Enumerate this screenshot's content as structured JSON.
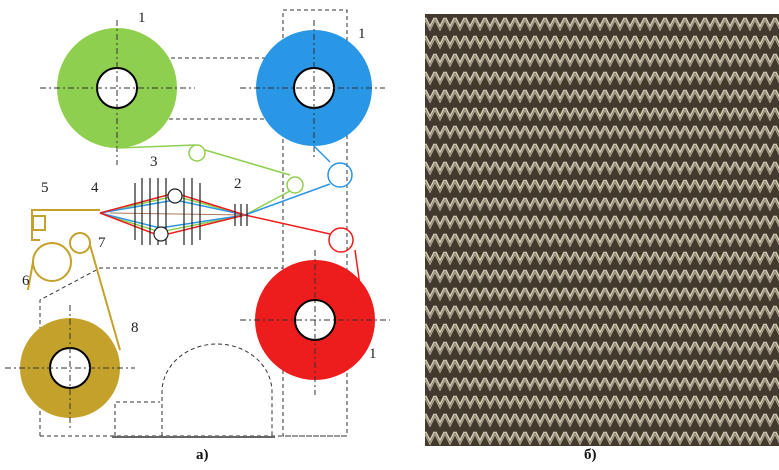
{
  "diagram": {
    "labels": {
      "bobbin_green": "1",
      "bobbin_blue": "1",
      "bobbin_red": "1",
      "heddles": "3",
      "reed": "2",
      "fell": "4",
      "breast_beam": "5",
      "take_up_roller": "6",
      "press_roller": "7",
      "cloth_roll": "8"
    },
    "caption": "а)"
  },
  "photo": {
    "caption": "б)"
  },
  "colors": {
    "green": "#8fcf4f",
    "blue": "#2a96e6",
    "red": "#ee1d1d",
    "gold": "#c4a12a",
    "line": "#333333",
    "fabric_dark": "#3b3428",
    "fabric_light": "#e9e2d2"
  }
}
